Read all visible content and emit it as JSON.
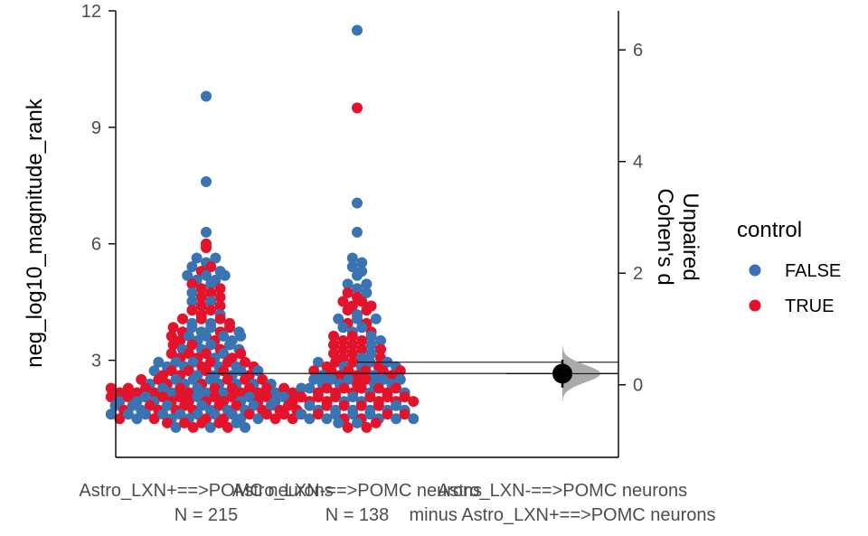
{
  "chart_data": {
    "type": "scatter",
    "subtype": "estimation-plot (swarm + effect size)",
    "left_axis": {
      "label": "neg_log10_magnitude_rank",
      "ylim": [
        0.5,
        12
      ],
      "ticks": [
        3,
        6,
        9,
        12
      ],
      "tick_labels": [
        "3",
        "6",
        "9",
        "12"
      ]
    },
    "right_axis": {
      "label_line1": "Unpaired",
      "label_line2": "Cohen's d",
      "ylim": [
        -1.3,
        6.7
      ],
      "ticks": [
        0,
        2,
        4,
        6
      ],
      "tick_labels": [
        "0",
        "2",
        "4",
        "6"
      ]
    },
    "categories": [
      {
        "label": "Astro_LXN+==>POMC neurons",
        "n_label": "N = 215"
      },
      {
        "label": "Astro_LXN-==>POMC neurons",
        "n_label": "N = 138"
      },
      {
        "label": "Astro_LXN-==>POMC neurons",
        "label2": "minus Astro_LXN+==>POMC neurons"
      }
    ],
    "legend": {
      "title": "control",
      "entries": [
        {
          "label": "FALSE",
          "color": "#3a73b2"
        },
        {
          "label": "TRUE",
          "color": "#e3132b"
        }
      ]
    },
    "group_means": [
      2.66,
      2.95
    ],
    "effect_size": {
      "estimate": 0.2,
      "ci_low": -0.05,
      "ci_high": 0.45
    },
    "groups": [
      {
        "name": "Astro_LXN+==>POMC neurons",
        "highlight_points": [
          {
            "y": 9.8,
            "control": "FALSE"
          },
          {
            "y": 7.6,
            "control": "FALSE"
          },
          {
            "y": 6.3,
            "control": "FALSE"
          },
          {
            "y": 6.0,
            "control": "TRUE"
          },
          {
            "y": 5.9,
            "control": "TRUE"
          }
        ],
        "bulk": [
          {
            "lo": 5.0,
            "hi": 5.6,
            "count": 12,
            "p_true": 0.3
          },
          {
            "lo": 4.0,
            "hi": 5.0,
            "count": 18,
            "p_true": 0.45
          },
          {
            "lo": 3.0,
            "hi": 4.0,
            "count": 38,
            "p_true": 0.6
          },
          {
            "lo": 2.4,
            "hi": 3.0,
            "count": 34,
            "p_true": 0.45
          },
          {
            "lo": 1.35,
            "hi": 2.4,
            "count": 108,
            "p_true": 0.6
          }
        ]
      },
      {
        "name": "Astro_LXN-==>POMC neurons",
        "highlight_points": [
          {
            "y": 11.5,
            "control": "FALSE"
          },
          {
            "y": 9.5,
            "control": "TRUE"
          },
          {
            "y": 7.05,
            "control": "FALSE"
          },
          {
            "y": 6.3,
            "control": "FALSE"
          }
        ],
        "bulk": [
          {
            "lo": 4.8,
            "hi": 5.6,
            "count": 8,
            "p_true": 0.35
          },
          {
            "lo": 3.8,
            "hi": 4.8,
            "count": 16,
            "p_true": 0.5
          },
          {
            "lo": 2.9,
            "hi": 3.8,
            "count": 24,
            "p_true": 0.55
          },
          {
            "lo": 2.2,
            "hi": 2.9,
            "count": 36,
            "p_true": 0.55
          },
          {
            "lo": 1.35,
            "hi": 2.2,
            "count": 50,
            "p_true": 0.5
          }
        ]
      }
    ]
  }
}
